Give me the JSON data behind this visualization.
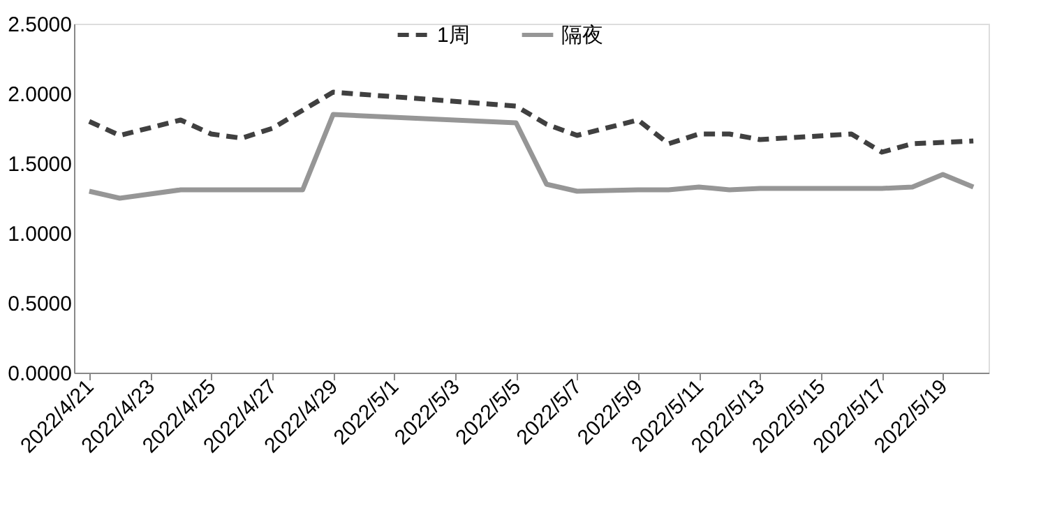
{
  "chart_data": {
    "type": "line",
    "x": [
      "2022-04-21",
      "2022-04-22",
      "2022-04-24",
      "2022-04-25",
      "2022-04-26",
      "2022-04-27",
      "2022-04-28",
      "2022-04-29",
      "2022-05-05",
      "2022-05-06",
      "2022-05-07",
      "2022-05-09",
      "2022-05-10",
      "2022-05-11",
      "2022-05-12",
      "2022-05-13",
      "2022-05-16",
      "2022-05-17",
      "2022-05-18",
      "2022-05-19",
      "2022-05-20"
    ],
    "series": [
      {
        "name": "1周",
        "color": "#404040",
        "line_style": "dashed",
        "values": [
          1.8,
          1.7,
          1.81,
          1.71,
          1.68,
          1.75,
          1.88,
          2.01,
          1.91,
          1.78,
          1.7,
          1.81,
          1.64,
          1.71,
          1.71,
          1.67,
          1.71,
          1.58,
          1.64,
          1.65,
          1.66
        ]
      },
      {
        "name": "隔夜",
        "color": "#969696",
        "line_style": "solid",
        "values": [
          1.3,
          1.25,
          1.31,
          1.31,
          1.31,
          1.31,
          1.31,
          1.85,
          1.79,
          1.35,
          1.3,
          1.31,
          1.31,
          1.33,
          1.31,
          1.32,
          1.32,
          1.32,
          1.33,
          1.42,
          1.33
        ]
      }
    ],
    "xlim": [
      "2022-04-20T12:00",
      "2022-05-20T12:00"
    ],
    "xticks": [
      {
        "value": "2022-04-21",
        "label": "2022/4/21"
      },
      {
        "value": "2022-04-23",
        "label": "2022/4/23"
      },
      {
        "value": "2022-04-25",
        "label": "2022/4/25"
      },
      {
        "value": "2022-04-27",
        "label": "2022/4/27"
      },
      {
        "value": "2022-04-29",
        "label": "2022/4/29"
      },
      {
        "value": "2022-05-01",
        "label": "2022/5/1"
      },
      {
        "value": "2022-05-03",
        "label": "2022/5/3"
      },
      {
        "value": "2022-05-05",
        "label": "2022/5/5"
      },
      {
        "value": "2022-05-07",
        "label": "2022/5/7"
      },
      {
        "value": "2022-05-09",
        "label": "2022/5/9"
      },
      {
        "value": "2022-05-11",
        "label": "2022/5/11"
      },
      {
        "value": "2022-05-13",
        "label": "2022/5/13"
      },
      {
        "value": "2022-05-15",
        "label": "2022/5/15"
      },
      {
        "value": "2022-05-17",
        "label": "2022/5/17"
      },
      {
        "value": "2022-05-19",
        "label": "2022/5/19"
      }
    ],
    "ylim": [
      0,
      2.5
    ],
    "yticks": [
      {
        "value": 0,
        "label": "0.0000"
      },
      {
        "value": 0.5,
        "label": "0.5000"
      },
      {
        "value": 1,
        "label": "1.0000"
      },
      {
        "value": 1.5,
        "label": "1.5000"
      },
      {
        "value": 2,
        "label": "2.0000"
      },
      {
        "value": 2.5,
        "label": "2.5000"
      }
    ],
    "grid": false,
    "legend": "top",
    "marker": "none"
  }
}
